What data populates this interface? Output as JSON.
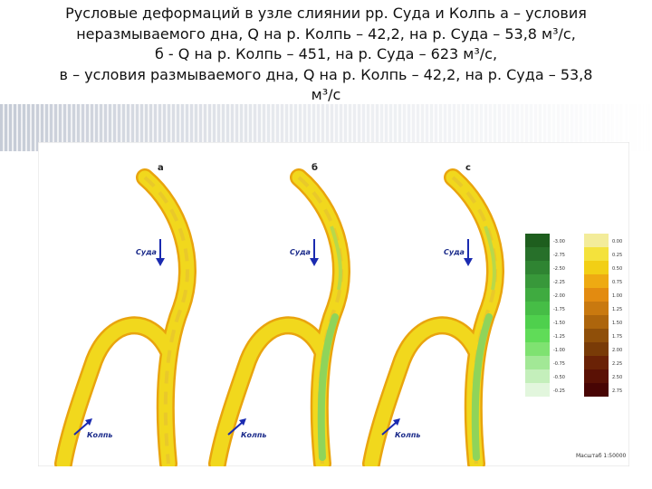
{
  "header": {
    "title_lines": [
      "Русловые деформаций в узле слиянии рр. Суда и Колпь а – условия",
      "неразмываемого дна, Q на р. Колпь – 42,2, на р. Суда – 53,8 м³/с,",
      "б - Q на р. Колпь – 451, на р. Суда – 623 м³/с,",
      "в – условия размываемого дна, Q на р. Колпь – 42,2, на р. Суда – 53,8",
      "м³/с"
    ]
  },
  "maps": [
    {
      "label": "а",
      "river_main": "Суда",
      "river_tributary": "Колпь",
      "green": false
    },
    {
      "label": "б",
      "river_main": "Суда",
      "river_tributary": "Колпь",
      "green": true
    },
    {
      "label": "с",
      "river_main": "Суда",
      "river_tributary": "Колпь",
      "green": true
    }
  ],
  "legend": {
    "erosion": [
      {
        "label": "-3.00",
        "color": "#1e5e1e"
      },
      {
        "label": "-2.75",
        "color": "#27702a"
      },
      {
        "label": "-2.50",
        "color": "#2f8432"
      },
      {
        "label": "-2.25",
        "color": "#38983a"
      },
      {
        "label": "-2.00",
        "color": "#3fab40"
      },
      {
        "label": "-1.75",
        "color": "#46bd46"
      },
      {
        "label": "-1.50",
        "color": "#4fd04d"
      },
      {
        "label": "-1.25",
        "color": "#60dc58"
      },
      {
        "label": "-1.00",
        "color": "#7fe271"
      },
      {
        "label": "-0.75",
        "color": "#a2e896"
      },
      {
        "label": "-0.50",
        "color": "#c4efbb"
      },
      {
        "label": "-0.25",
        "color": "#e2f6dd"
      }
    ],
    "deposition": [
      {
        "label": "0.00",
        "color": "#f3ec9a"
      },
      {
        "label": "0.25",
        "color": "#f4e23c"
      },
      {
        "label": "0.50",
        "color": "#f2cf15"
      },
      {
        "label": "0.75",
        "color": "#eeaa12"
      },
      {
        "label": "1.00",
        "color": "#e38b10"
      },
      {
        "label": "1.25",
        "color": "#c9790f"
      },
      {
        "label": "1.50",
        "color": "#ad650c"
      },
      {
        "label": "1.75",
        "color": "#8f4f09"
      },
      {
        "label": "2.00",
        "color": "#793b07"
      },
      {
        "label": "2.25",
        "color": "#6a2206"
      },
      {
        "label": "2.50",
        "color": "#5a1105"
      },
      {
        "label": "2.75",
        "color": "#480504"
      }
    ]
  },
  "scale": "Масштаб 1:50000"
}
